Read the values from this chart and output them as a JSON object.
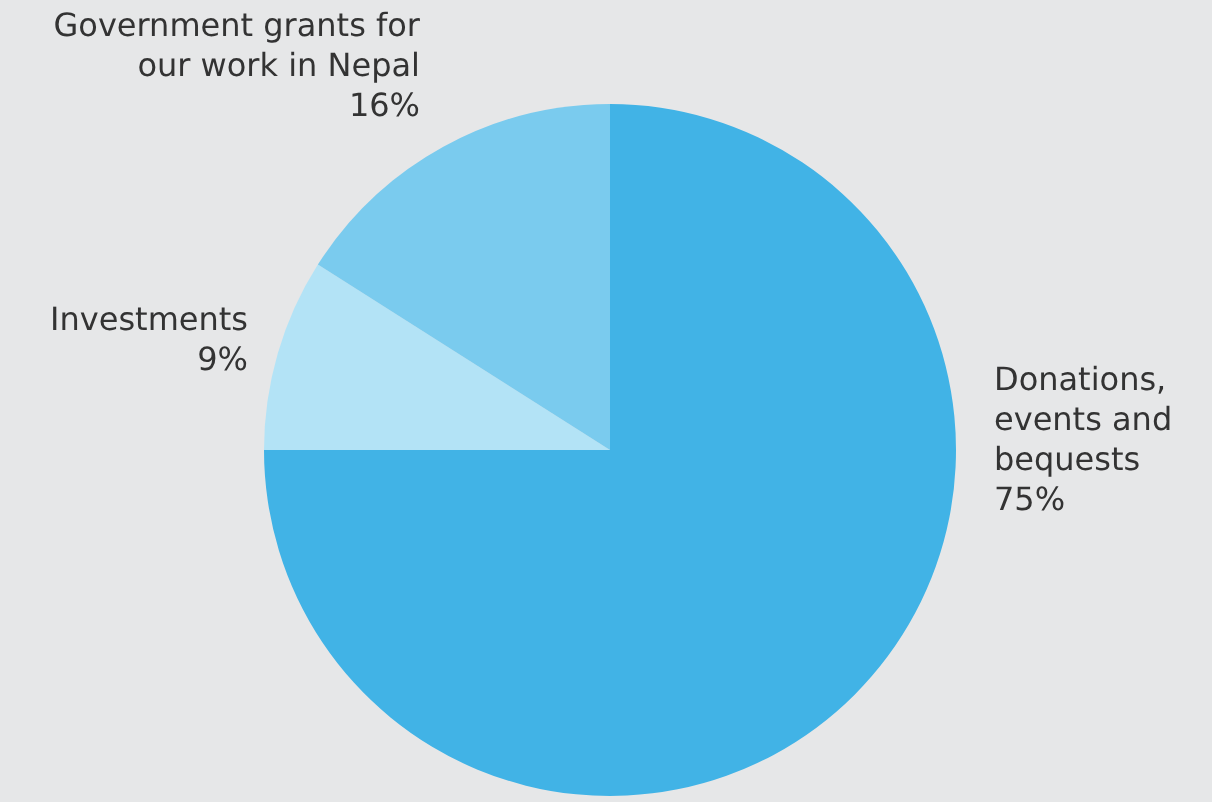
{
  "chart_data": {
    "type": "pie",
    "categories": [
      "Donations, events and bequests",
      "Investments",
      "Government grants for our work in Nepal"
    ],
    "values": [
      75,
      9,
      16
    ],
    "colors": [
      "#41b3e6",
      "#b3e3f6",
      "#7acbee"
    ],
    "value_labels": [
      "75%",
      "9%",
      "16%"
    ],
    "legend": false
  }
}
